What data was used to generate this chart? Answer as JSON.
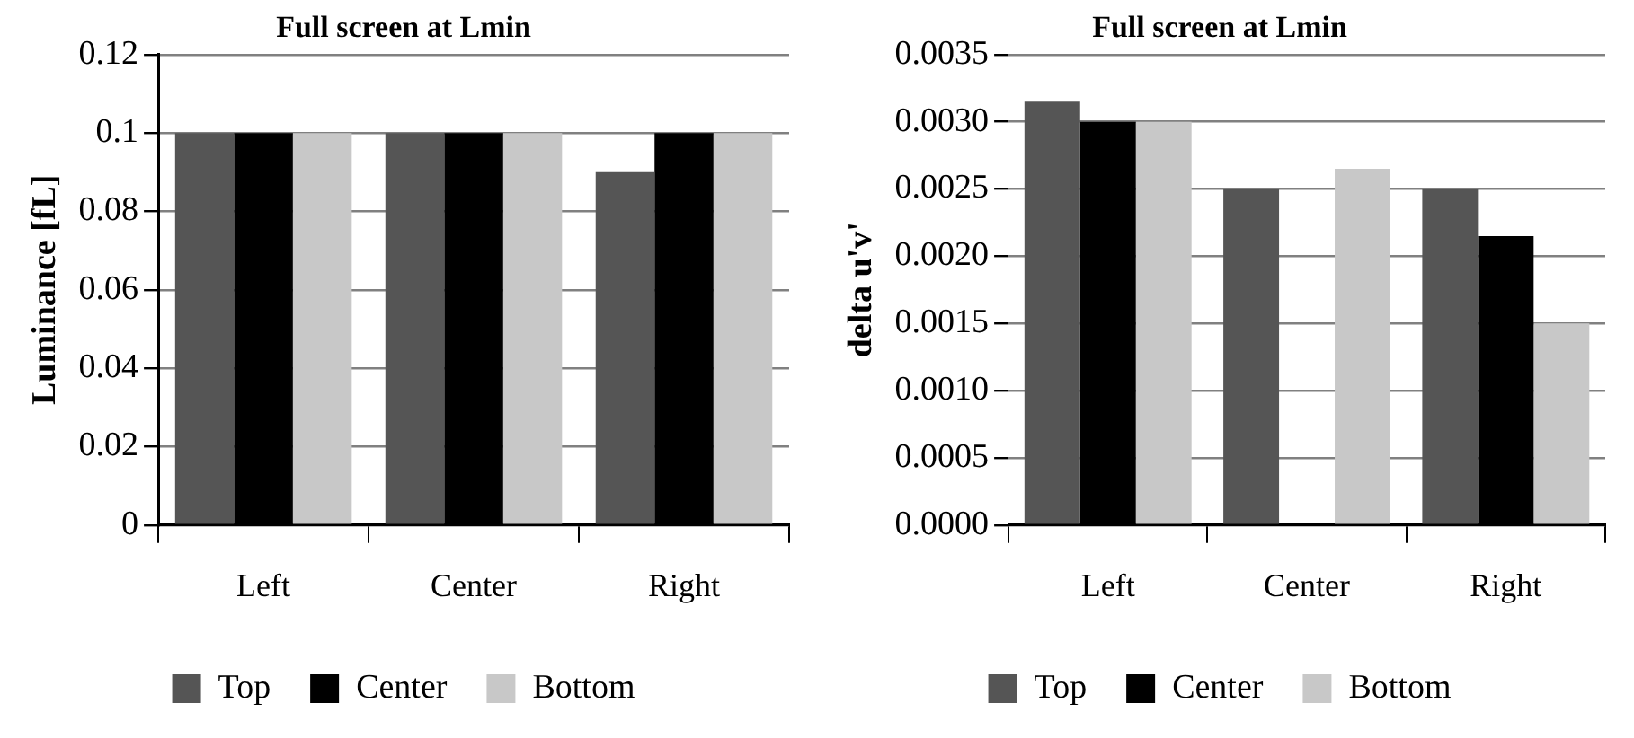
{
  "chart_data": [
    {
      "type": "bar",
      "title": "Full screen at Lmin",
      "ylabel": "Luminance [fL]",
      "categories": [
        "Left",
        "Center",
        "Right"
      ],
      "series": [
        {
          "name": "Top",
          "color": "#555555",
          "values": [
            0.1,
            0.1,
            0.09
          ]
        },
        {
          "name": "Center",
          "color": "#000000",
          "values": [
            0.1,
            0.1,
            0.1
          ]
        },
        {
          "name": "Bottom",
          "color": "#c8c8c8",
          "values": [
            0.1,
            0.1,
            0.1
          ]
        }
      ],
      "ylim": [
        0,
        0.12
      ],
      "yticks": [
        0,
        0.02,
        0.04,
        0.06,
        0.08,
        0.1,
        0.12
      ],
      "grid": "y",
      "legend": "bottom"
    },
    {
      "type": "bar",
      "title": "Full screen at Lmin",
      "ylabel": "delta u'v'",
      "categories": [
        "Left",
        "Center",
        "Right"
      ],
      "series": [
        {
          "name": "Top",
          "color": "#555555",
          "values": [
            0.00315,
            0.0025,
            0.0025
          ]
        },
        {
          "name": "Center",
          "color": "#000000",
          "values": [
            0.003,
            0,
            0.00215
          ]
        },
        {
          "name": "Bottom",
          "color": "#c8c8c8",
          "values": [
            0.003,
            0.00265,
            0.0015
          ]
        }
      ],
      "ylim": [
        0,
        0.0035
      ],
      "yticks": [
        {
          "value": 0,
          "label": "0.0000"
        },
        {
          "value": 0.0005,
          "label": "0.0005"
        },
        {
          "value": 0.001,
          "label": "0.0010"
        },
        {
          "value": 0.0015,
          "label": "0.0015"
        },
        {
          "value": 0.002,
          "label": "0.0020"
        },
        {
          "value": 0.0025,
          "label": "0.0025"
        },
        {
          "value": 0.003,
          "label": "0.0030"
        },
        {
          "value": 0.0035,
          "label": "0.0035"
        }
      ],
      "grid": "y",
      "legend": "bottom"
    }
  ]
}
